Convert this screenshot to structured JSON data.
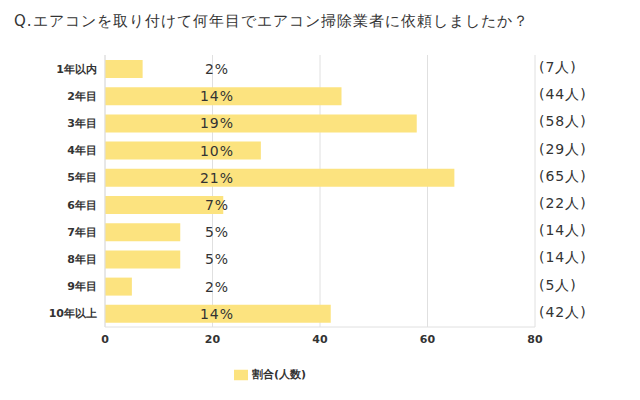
{
  "chart_data": {
    "type": "bar",
    "orientation": "horizontal",
    "title": "Q.エアコンを取り付けて何年目でエアコン掃除業者に依頼しましたか？",
    "categories": [
      "1年以内",
      "2年目",
      "3年目",
      "4年目",
      "5年目",
      "6年目",
      "7年目",
      "8年目",
      "9年目",
      "10年以上"
    ],
    "series": [
      {
        "name": "割合(人数)",
        "color": "#fce37f",
        "values": [
          7,
          44,
          58,
          29,
          65,
          22,
          14,
          14,
          5,
          42
        ],
        "value_labels": [
          "(7人)",
          "(44人)",
          "(58人)",
          "(29人)",
          "(65人)",
          "(22人)",
          "(14人)",
          "(14人)",
          "(5人)",
          "(42人)"
        ],
        "share_labels": [
          "2%",
          "14%",
          "19%",
          "10%",
          "21%",
          "7%",
          "5%",
          "5%",
          "2%",
          "14%"
        ]
      }
    ],
    "xlim": [
      0,
      80
    ],
    "xticks": [
      0,
      20,
      40,
      60,
      80
    ],
    "grid": true,
    "legend": "bottom",
    "data_labels": true
  }
}
